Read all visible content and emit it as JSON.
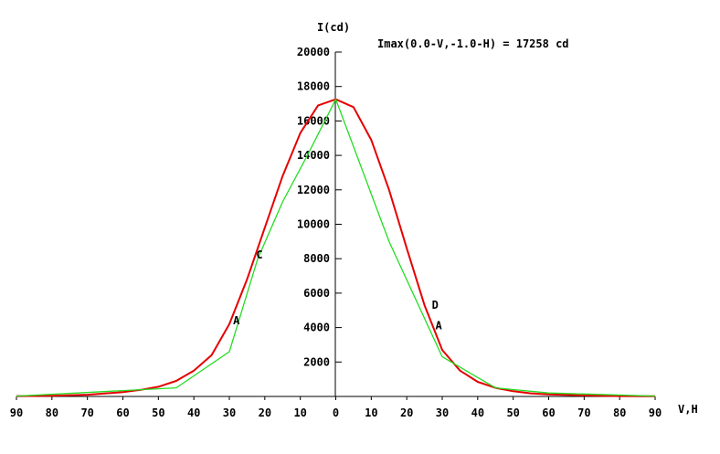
{
  "chart_data": {
    "type": "line",
    "ylabel": "I(cd)",
    "xlabel": "V,H",
    "annotation": "Imax(0.0-V,-1.0-H) = 17258 cd",
    "xlim": [
      -90,
      90
    ],
    "ylim": [
      0,
      20000
    ],
    "x_tick_labels": [
      "90",
      "80",
      "70",
      "60",
      "50",
      "40",
      "30",
      "20",
      "10",
      "0",
      "10",
      "20",
      "30",
      "40",
      "50",
      "60",
      "70",
      "80",
      "90"
    ],
    "y_tick_values": [
      2000,
      4000,
      6000,
      8000,
      10000,
      12000,
      14000,
      16000,
      18000,
      20000
    ],
    "y_tick_labels": [
      "2000",
      "4000",
      "6000",
      "8000",
      "10000",
      "12000",
      "14000",
      "16000",
      "18000",
      "20000"
    ],
    "grid": false,
    "series": [
      {
        "color": "#e60000",
        "x": [
          -90,
          -80,
          -70,
          -60,
          -55,
          -50,
          -45,
          -40,
          -35,
          -30,
          -25,
          -20,
          -15,
          -10,
          -5,
          0,
          5,
          10,
          15,
          20,
          25,
          30,
          35,
          40,
          45,
          50,
          55,
          60,
          70,
          80,
          90
        ],
        "y": [
          20,
          40,
          100,
          250,
          380,
          560,
          900,
          1500,
          2400,
          4200,
          6800,
          9800,
          12800,
          15300,
          16900,
          17258,
          16800,
          14900,
          12000,
          8600,
          5300,
          2700,
          1500,
          850,
          500,
          300,
          180,
          120,
          60,
          20,
          10
        ]
      },
      {
        "color": "#22dd22",
        "x": [
          -90,
          -45,
          -30,
          -22,
          -15,
          -8,
          0,
          15,
          30,
          45,
          60,
          90
        ],
        "y": [
          20,
          500,
          2600,
          8000,
          11300,
          14000,
          17258,
          9000,
          2300,
          500,
          200,
          20
        ]
      }
    ],
    "curve_labels": [
      {
        "text": "C",
        "x": -21.5,
        "y": 8000
      },
      {
        "text": "A",
        "x": -28,
        "y": 4200
      },
      {
        "text": "D",
        "x": 28,
        "y": 5100
      },
      {
        "text": "A",
        "x": 29,
        "y": 3900
      }
    ]
  }
}
